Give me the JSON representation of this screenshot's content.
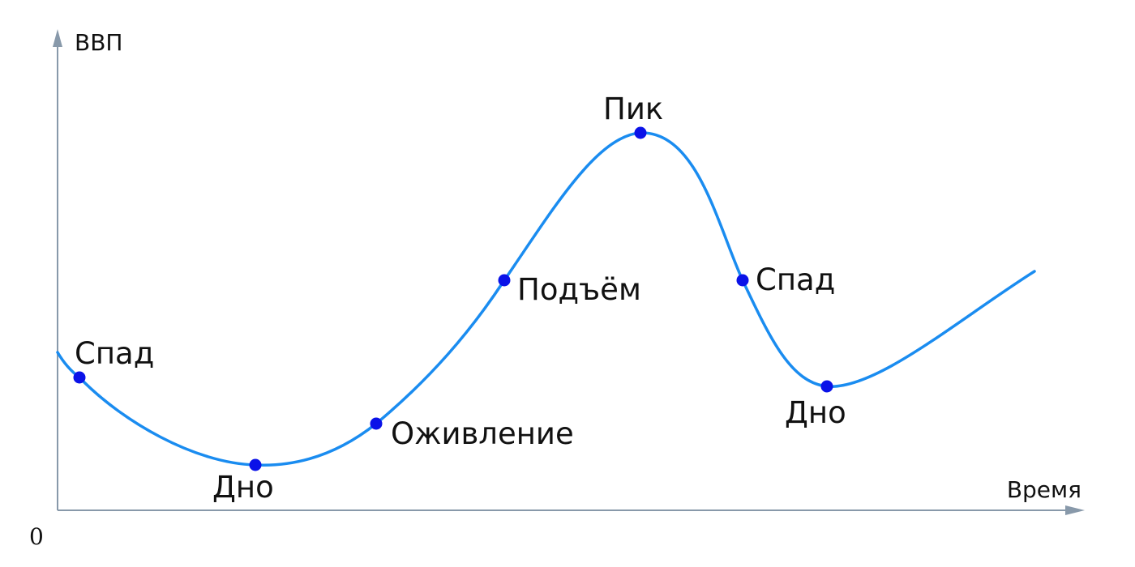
{
  "axes": {
    "y_label": "ВВП",
    "x_label": "Время",
    "origin_label": "0"
  },
  "colors": {
    "curve": "#1a8cf0",
    "point": "#0a12e8",
    "axis": "#8899aa",
    "text": "#111111"
  },
  "phases": [
    {
      "label": "Спад"
    },
    {
      "label": "Дно"
    },
    {
      "label": "Оживление"
    },
    {
      "label": "Подъём"
    },
    {
      "label": "Пик"
    },
    {
      "label": "Спад"
    },
    {
      "label": "Дно"
    }
  ]
}
